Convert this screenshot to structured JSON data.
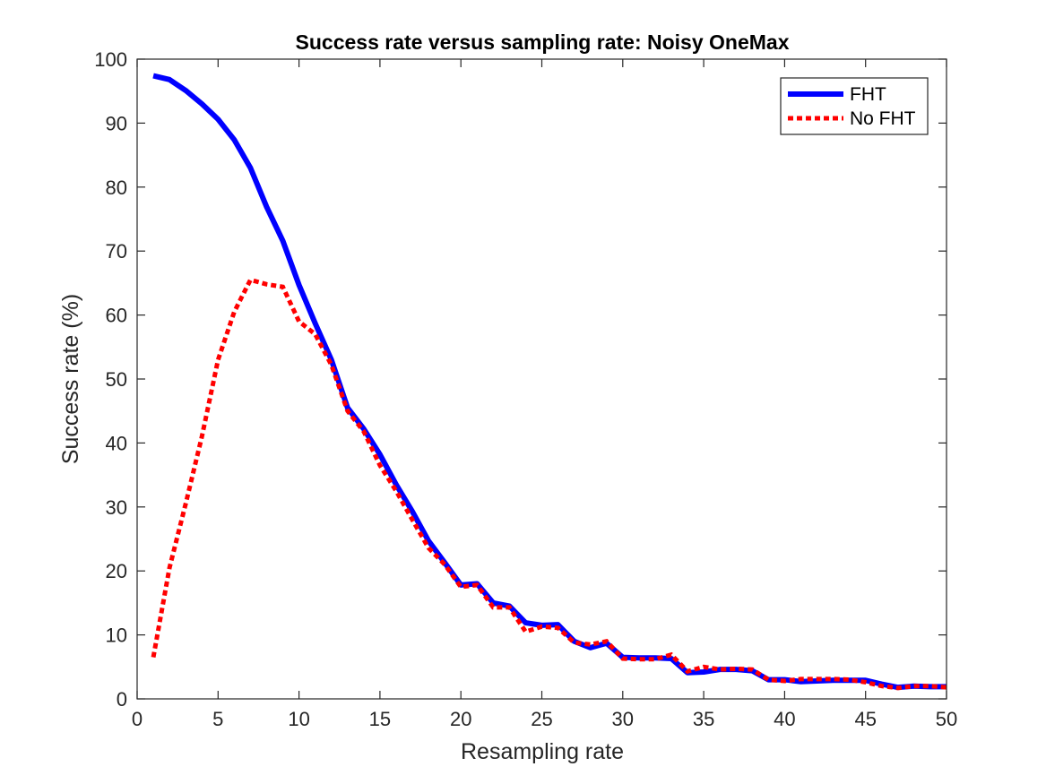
{
  "chart_data": {
    "type": "line",
    "title": "Success rate versus sampling rate: Noisy OneMax",
    "xlabel": "Resampling rate",
    "ylabel": "Success rate (%)",
    "xlim": [
      0,
      50
    ],
    "ylim": [
      0,
      100
    ],
    "xticks": [
      0,
      5,
      10,
      15,
      20,
      25,
      30,
      35,
      40,
      45,
      50
    ],
    "yticks": [
      0,
      10,
      20,
      30,
      40,
      50,
      60,
      70,
      80,
      90,
      100
    ],
    "grid": false,
    "legend_position": "top-right",
    "x": [
      1,
      2,
      3,
      4,
      5,
      6,
      7,
      8,
      9,
      10,
      11,
      12,
      13,
      14,
      15,
      16,
      17,
      18,
      19,
      20,
      21,
      22,
      23,
      24,
      25,
      26,
      27,
      28,
      29,
      30,
      31,
      32,
      33,
      34,
      35,
      36,
      37,
      38,
      39,
      40,
      41,
      42,
      43,
      44,
      45,
      46,
      47,
      48,
      49,
      50
    ],
    "series": [
      {
        "name": "FHT",
        "color": "#0000ff",
        "style": "solid",
        "values": [
          97.4,
          96.8,
          95.1,
          93.0,
          90.6,
          87.4,
          83.0,
          76.9,
          71.6,
          64.7,
          58.7,
          53.0,
          45.5,
          42.2,
          38.2,
          33.5,
          29.3,
          24.7,
          21.3,
          17.8,
          18.0,
          15.0,
          14.5,
          11.9,
          11.5,
          11.6,
          9.0,
          8.0,
          8.7,
          6.5,
          6.4,
          6.4,
          6.3,
          4.1,
          4.2,
          4.6,
          4.6,
          4.4,
          3.0,
          3.0,
          2.7,
          2.8,
          2.9,
          2.9,
          2.9,
          2.3,
          1.8,
          2.0,
          1.9,
          1.9
        ]
      },
      {
        "name": "No FHT",
        "color": "#ff0000",
        "style": "dotted",
        "values": [
          6.5,
          20.5,
          30.5,
          41.0,
          53.0,
          60.5,
          65.5,
          64.8,
          64.4,
          59.0,
          57.0,
          52.2,
          45.0,
          41.8,
          36.5,
          32.5,
          28.0,
          23.6,
          21.0,
          17.5,
          17.8,
          14.3,
          14.3,
          10.5,
          11.3,
          11.1,
          8.8,
          8.5,
          9.0,
          6.3,
          6.2,
          6.2,
          6.9,
          4.3,
          5.0,
          4.6,
          4.7,
          4.6,
          3.0,
          2.8,
          3.1,
          3.1,
          3.1,
          3.0,
          2.6,
          2.0,
          1.7,
          2.0,
          2.0,
          1.8
        ]
      }
    ]
  }
}
